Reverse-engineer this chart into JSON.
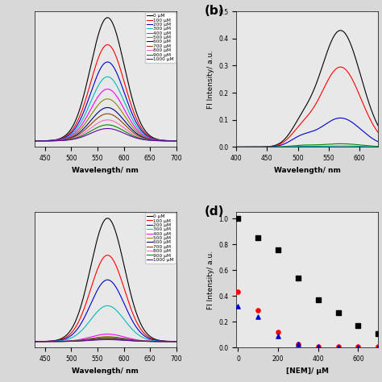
{
  "panel_a": {
    "xlabel": "Wavelength/ nm",
    "ylabel": "",
    "xlim": [
      430,
      700
    ],
    "ylim_auto": true,
    "peak": 569,
    "sigma": 32,
    "amplitudes": [
      1.0,
      0.78,
      0.64,
      0.52,
      0.42,
      0.34,
      0.27,
      0.22,
      0.17,
      0.13,
      0.1
    ],
    "colors": [
      "#000000",
      "#ff0000",
      "#0000cc",
      "#00bbbb",
      "#ff00ff",
      "#888800",
      "#000088",
      "#884400",
      "#ff66bb",
      "#008800",
      "#6600aa"
    ],
    "labels": [
      "0 μM",
      "100 μM",
      "200 μM",
      "300 μM",
      "400 μM",
      "500 μM",
      "600 μM",
      "700 μM",
      "800 μM",
      "900 μM",
      "1000 μM"
    ],
    "xticks": [
      450,
      500,
      550,
      600,
      650,
      700
    ],
    "no_ytick_labels": true
  },
  "panel_b": {
    "xlabel": "Wavelength/ nm",
    "ylabel": "FI Intensity/ a.u.",
    "xlim": [
      400,
      630
    ],
    "ylim": [
      0,
      0.5
    ],
    "peak": 569,
    "sigma": 33,
    "peak2": 505,
    "sigma2": 18,
    "amplitudes_main": [
      0.43,
      0.295,
      0.107,
      0.012,
      0.004
    ],
    "amplitudes_shoulder": [
      0.055,
      0.042,
      0.028,
      0.005,
      0.002
    ],
    "colors": [
      "#000000",
      "#ff0000",
      "#0000cc",
      "#008800",
      "#00aaaa"
    ],
    "yticks": [
      0.0,
      0.1,
      0.2,
      0.3,
      0.4,
      0.5
    ],
    "xticks": [
      400,
      450,
      500,
      550,
      600
    ]
  },
  "panel_c": {
    "xlabel": "Wavelength/ nm",
    "ylabel": "",
    "xlim": [
      430,
      700
    ],
    "ylim_auto": true,
    "peak": 569,
    "sigma": 32,
    "amplitudes": [
      1.0,
      0.7,
      0.5,
      0.29,
      0.06,
      0.04,
      0.03,
      0.025,
      0.02,
      0.018,
      0.015
    ],
    "colors": [
      "#000000",
      "#ff0000",
      "#0000cc",
      "#00bbbb",
      "#ff00ff",
      "#888800",
      "#000088",
      "#884400",
      "#ff66bb",
      "#008800",
      "#6600aa"
    ],
    "labels": [
      "0 μM",
      "100 μM",
      "200 μM",
      "300 μM",
      "400 μM",
      "500 μM",
      "600 μM",
      "700 μM",
      "800 μM",
      "900 μM",
      "1000 μM"
    ],
    "xticks": [
      450,
      500,
      550,
      600,
      650,
      700
    ],
    "no_ytick_labels": true
  },
  "panel_d": {
    "xlabel": "[NEM]/ μM",
    "ylabel": "FI Intensity/ a.u.",
    "xlim": [
      -10,
      700
    ],
    "ylim": [
      0,
      1.05
    ],
    "x": [
      0,
      100,
      200,
      300,
      400,
      500,
      600,
      700
    ],
    "y_black": [
      1.0,
      0.85,
      0.76,
      0.54,
      0.37,
      0.27,
      0.17,
      0.11
    ],
    "y_red": [
      0.43,
      0.29,
      0.12,
      0.03,
      0.01,
      0.01,
      0.01,
      0.01
    ],
    "y_blue": [
      0.32,
      0.24,
      0.09,
      0.03,
      0.01,
      0.005,
      0.005,
      0.005
    ],
    "markers": [
      "s",
      "o",
      "^"
    ],
    "marker_colors": [
      "#000000",
      "#ff0000",
      "#0000cc"
    ],
    "yticks": [
      0.0,
      0.2,
      0.4,
      0.6,
      0.8,
      1.0
    ],
    "xticks": [
      0,
      200,
      400,
      600
    ]
  },
  "label_b": "(b)",
  "label_d": "(d)",
  "background_color": "#f0f0f0"
}
